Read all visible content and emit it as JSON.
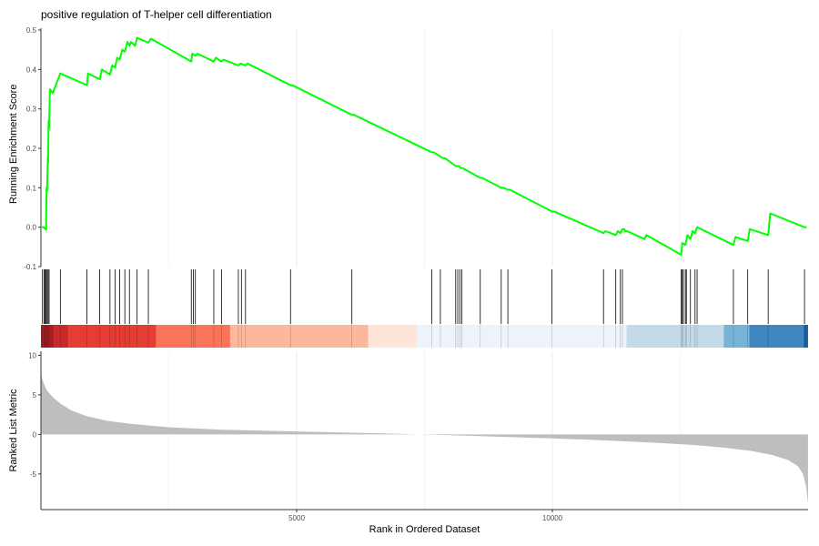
{
  "chart_data": {
    "type": "gsea_enrichment_plot",
    "title": "positive regulation of T-helper cell differentiation",
    "xlabel": "Rank in Ordered Dataset",
    "top_panel": {
      "ylabel": "Running Enrichment Score",
      "ylim": [
        -0.1,
        0.5
      ],
      "yticks": [
        -0.1,
        0.0,
        0.1,
        0.2,
        0.3,
        0.4,
        0.5
      ],
      "ytick_labels": [
        "-0.1",
        "0.0",
        "0.1",
        "0.2",
        "0.3",
        "0.4",
        "0.5"
      ],
      "line_color": "#00ff00",
      "running_score": {
        "x": [
          0,
          60,
          80,
          100,
          110,
          120,
          135,
          140,
          150,
          160,
          175,
          230,
          380,
          900,
          920,
          1150,
          1190,
          1350,
          1390,
          1450,
          1490,
          1540,
          1590,
          1640,
          1690,
          1730,
          1760,
          1840,
          1880,
          2100,
          2150,
          2940,
          2960,
          3020,
          3060,
          3380,
          3420,
          3530,
          3570,
          3860,
          3900,
          4000,
          4040,
          4880,
          4920,
          6080,
          6120,
          7640,
          7680,
          7860,
          7900,
          8110,
          8150,
          8140,
          8180,
          8200,
          8240,
          8590,
          8630,
          9000,
          9040,
          9130,
          9170,
          9990,
          10030,
          11000,
          11040,
          11240,
          11280,
          11330,
          11370,
          11370,
          11410,
          11420,
          11460,
          11800,
          11840,
          12520,
          12540,
          12600,
          12640,
          12700,
          12740,
          12790,
          12830,
          13540,
          13580,
          13820,
          13860,
          14220,
          14260,
          14930,
          14970
        ],
        "y": [
          0.0,
          0.0,
          -0.005,
          -0.005,
          0.1,
          0.09,
          0.18,
          0.16,
          0.27,
          0.25,
          0.35,
          0.34,
          0.39,
          0.36,
          0.39,
          0.375,
          0.4,
          0.387,
          0.41,
          0.405,
          0.43,
          0.425,
          0.45,
          0.445,
          0.47,
          0.46,
          0.47,
          0.46,
          0.48,
          0.468,
          0.478,
          0.42,
          0.44,
          0.435,
          0.44,
          0.42,
          0.43,
          0.42,
          0.425,
          0.41,
          0.415,
          0.41,
          0.415,
          0.36,
          0.36,
          0.285,
          0.285,
          0.19,
          0.19,
          0.175,
          0.175,
          0.155,
          0.155,
          0.155,
          0.155,
          0.15,
          0.15,
          0.125,
          0.125,
          0.1,
          0.1,
          0.095,
          0.095,
          0.04,
          0.04,
          -0.015,
          -0.01,
          -0.02,
          -0.01,
          -0.015,
          -0.005,
          -0.005,
          -0.005,
          -0.01,
          -0.01,
          -0.03,
          -0.02,
          -0.07,
          -0.04,
          -0.045,
          -0.02,
          -0.03,
          -0.01,
          -0.015,
          0.0,
          -0.045,
          -0.025,
          -0.035,
          -0.005,
          -0.02,
          0.035,
          0.0,
          0.0
        ]
      }
    },
    "hits": [
      30,
      60,
      80,
      100,
      120,
      140,
      160,
      380,
      900,
      1150,
      1350,
      1450,
      1540,
      1640,
      1730,
      1880,
      2100,
      2940,
      2980,
      3020,
      3380,
      3530,
      3860,
      3920,
      4000,
      4880,
      6080,
      7640,
      7810,
      8110,
      8150,
      8190,
      8230,
      8590,
      9000,
      9130,
      9990,
      11000,
      11240,
      11330,
      11370,
      12520,
      12540,
      12560,
      12600,
      12620,
      12700,
      12790,
      12830,
      13540,
      13820,
      14220,
      14930
    ],
    "color_strip": [
      {
        "from": 0,
        "to": 250,
        "color": "#a91f24"
      },
      {
        "from": 250,
        "to": 540,
        "color": "#cb282a"
      },
      {
        "from": 540,
        "to": 2250,
        "color": "#e53c34"
      },
      {
        "from": 2250,
        "to": 3700,
        "color": "#fa7459"
      },
      {
        "from": 3700,
        "to": 6400,
        "color": "#fdb79c"
      },
      {
        "from": 6400,
        "to": 7350,
        "color": "#fee4d9"
      },
      {
        "from": 7350,
        "to": 11450,
        "color": "#eef3fb"
      },
      {
        "from": 11450,
        "to": 13350,
        "color": "#c3dbe8"
      },
      {
        "from": 13350,
        "to": 13850,
        "color": "#78b3d8"
      },
      {
        "from": 13850,
        "to": 14920,
        "color": "#3e87c0"
      },
      {
        "from": 14920,
        "to": 14999,
        "color": "#1a5fa2"
      }
    ],
    "bottom_panel": {
      "ylabel": "Ranked List Metric",
      "ylim": [
        -9.5,
        10.5
      ],
      "yticks": [
        -5,
        0,
        5,
        10
      ],
      "ytick_labels": [
        "-5",
        "0",
        "5",
        "10"
      ],
      "fill_color": "#bebebe",
      "metric": {
        "x": [
          0,
          50,
          120,
          250,
          400,
          600,
          900,
          1300,
          1800,
          2500,
          3500,
          4500,
          5500,
          6500,
          7400,
          8000,
          9000,
          10000,
          11000,
          12000,
          12800,
          13400,
          13900,
          14300,
          14600,
          14800,
          14900,
          14960,
          14999
        ],
        "y": [
          7.5,
          6.5,
          5.5,
          4.6,
          3.8,
          3.0,
          2.3,
          1.7,
          1.3,
          0.9,
          0.6,
          0.45,
          0.3,
          0.15,
          0.0,
          -0.1,
          -0.3,
          -0.5,
          -0.75,
          -1.05,
          -1.35,
          -1.7,
          -2.1,
          -2.6,
          -3.2,
          -4.0,
          -5.0,
          -6.5,
          -8.8
        ]
      }
    },
    "xaxis": {
      "xlim": [
        0,
        15000
      ],
      "ticks": [
        5000,
        10000
      ],
      "tick_labels": [
        "5000",
        "10000"
      ]
    },
    "grid": true
  }
}
